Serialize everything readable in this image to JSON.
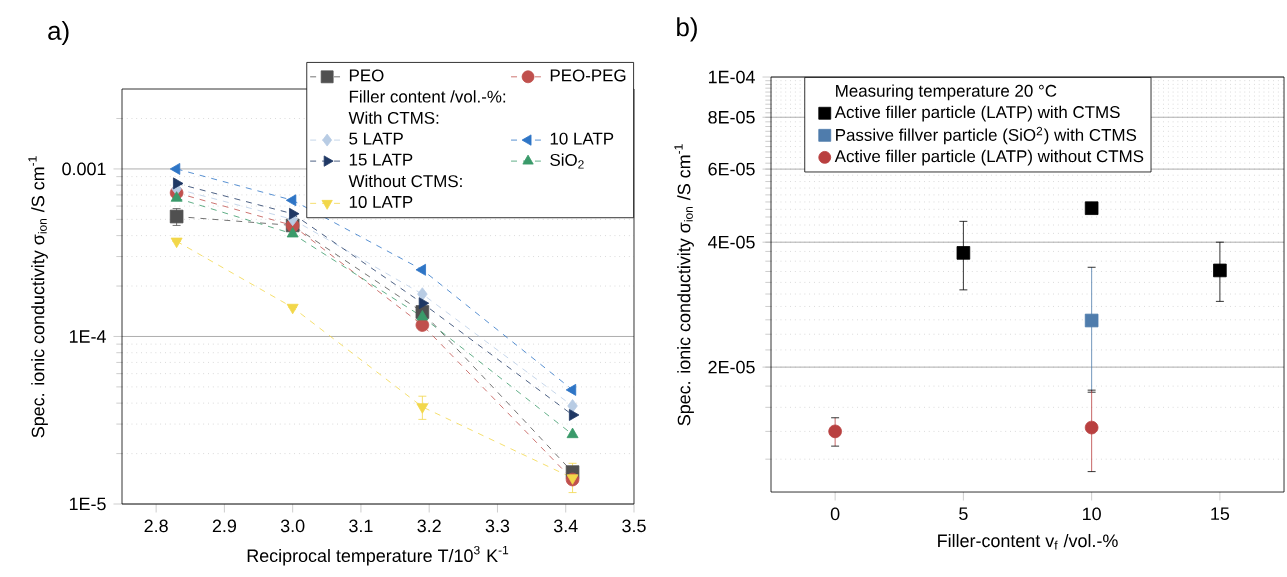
{
  "chart_data": [
    {
      "type": "line",
      "title": "a)",
      "xlabel": "Reciprocal temperature T/10$^{3}$ K$^{-1}$",
      "ylabel": "Spec. ionic conductivity σ$_{ion}$ /S cm$^{-1}$",
      "x": [
        2.83,
        3.0,
        3.19,
        3.41
      ],
      "series": [
        {
          "name": "PEO",
          "color": "#505050",
          "marker": "square",
          "values": [
            0.00052,
            0.00046,
            0.00014,
            1.55e-05
          ],
          "errors": [
            [
              0.00046,
              0.00058
            ],
            null,
            null,
            null
          ]
        },
        {
          "name": "PEO-PEG",
          "color": "#c0504d",
          "marker": "circle",
          "values": [
            0.00072,
            0.00046,
            0.000117,
            1.4e-05
          ]
        },
        {
          "name": "5 LATP",
          "color": "#b8cce4",
          "marker": "diamond",
          "values": [
            0.00076,
            0.0005,
            0.000179,
            3.85e-05
          ]
        },
        {
          "name": "10 LATP",
          "color": "#2e75c6",
          "marker": "triangle-left",
          "values": [
            0.001,
            0.00065,
            0.00025,
            4.8e-05
          ]
        },
        {
          "name": "15 LATP",
          "color": "#1f3864",
          "marker": "triangle-right",
          "values": [
            0.00082,
            0.00054,
            0.000158,
            3.4e-05
          ]
        },
        {
          "name": "SiO$_{2}$",
          "color": "#3a9a6a",
          "marker": "triangle",
          "values": [
            0.00067,
            0.00041,
            0.000131,
            2.6e-05
          ]
        },
        {
          "name": "10 LATP",
          "color": "#f2d74a",
          "marker": "triangle-down",
          "values": [
            0.00037,
            0.000149,
            3.8e-05,
            1.43e-05
          ],
          "errors": [
            null,
            null,
            [
              3.2e-05,
              4.4e-05
            ],
            [
              1.17e-05,
              1.75e-05
            ]
          ]
        }
      ],
      "legend_title": "Filler content /vol.-%:",
      "annotations": [
        "With CTMS:",
        "Without CTMS:"
      ],
      "log": "y",
      "xlim": [
        2.75,
        3.5
      ],
      "ylim": [
        1e-05,
        0.003
      ],
      "xticks": [
        2.8,
        2.9,
        {
          "value": 3,
          "label": "3.0"
        },
        3.1,
        3.2,
        3.3,
        3.4,
        3.5
      ],
      "yticks": [
        {
          "value": 1e-05,
          "label": "1E-5"
        },
        {
          "value": 0.0001,
          "label": "1E-4"
        },
        0.001
      ],
      "grid": "y",
      "legend": "top right",
      "line_style": "dashed"
    },
    {
      "type": "scatter",
      "title": "b)",
      "xlabel": "Filler-content v$_{f}$ /vol.-%",
      "ylabel": "Spec. ionic conductivity σ$_{ion}$ /S cm$^{-1}$",
      "legend_title": "Measuring temperature 20 °C",
      "series": [
        {
          "name": "Active filler particle (LATP) with CTMS",
          "color": "#000000",
          "marker": "square",
          "x": [
            5,
            10,
            15
          ],
          "values": [
            3.77e-05,
            4.83e-05,
            3.42e-05
          ],
          "errors": [
            [
              3.07e-05,
              4.49e-05
            ],
            null,
            [
              2.88e-05,
              4e-05
            ]
          ]
        },
        {
          "name": "Passive fillver particle (SiO$^{2}$) with CTMS",
          "color": "#4f7cac",
          "marker": "square",
          "x": [
            10
          ],
          "values": [
            2.59e-05
          ],
          "errors": [
            [
              1.74e-05,
              3.48e-05
            ]
          ]
        },
        {
          "name": "Active filler particle (LATP) without CTMS",
          "color": "#b94040",
          "marker": "circle",
          "x": [
            0,
            10
          ],
          "values": [
            1.4e-05,
            1.43e-05
          ],
          "errors": [
            [
              1.29e-05,
              1.51e-05
            ],
            [
              1.12e-05,
              1.76e-05
            ]
          ]
        }
      ],
      "log": "y",
      "xlim": [
        -2.5,
        17.5
      ],
      "ylim": [
        1e-05,
        0.0001
      ],
      "xticks": [
        0,
        5,
        10,
        15
      ],
      "yticks": [
        {
          "value": 2e-05,
          "label": "2E-05"
        },
        {
          "value": 4e-05,
          "label": "4E-05"
        },
        {
          "value": 6e-05,
          "label": "6E-05"
        },
        {
          "value": 8e-05,
          "label": "8E-05"
        },
        {
          "value": 0.0001,
          "label": "1E-04"
        }
      ],
      "grid": "y",
      "legend": "top"
    }
  ]
}
